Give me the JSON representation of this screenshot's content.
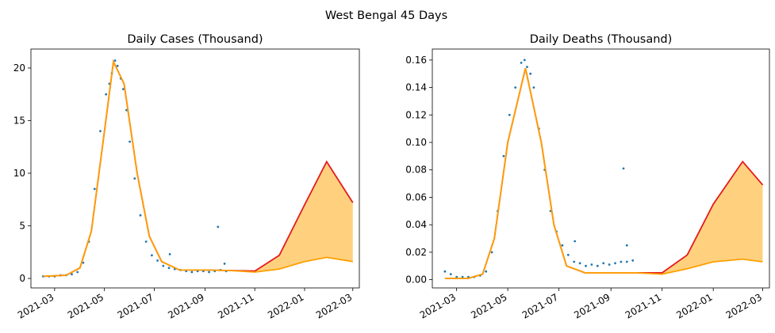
{
  "figure": {
    "suptitle": "West Bengal 45 Days"
  },
  "colors": {
    "points": "#1f77b4",
    "fit": "#ff9f00",
    "upper": "#e41a1c",
    "band": "#ffd17f"
  },
  "chart_data": [
    {
      "type": "scatter",
      "title": "Daily Cases (Thousand)",
      "xlabel": "",
      "ylabel": "",
      "x_ticks": [
        "2021-03",
        "2021-05",
        "2021-07",
        "2021-09",
        "2021-11",
        "2022-01",
        "2022-03"
      ],
      "y_ticks": [
        0,
        5,
        10,
        15,
        20
      ],
      "ylim": [
        -0.9,
        21.8
      ],
      "xlim": [
        "2022-02-17",
        "2022-03-09"
      ],
      "observed": {
        "x": [
          "2021-02-15",
          "2021-02-22",
          "2021-03-01",
          "2021-03-08",
          "2021-03-15",
          "2021-03-22",
          "2021-03-29",
          "2021-04-05",
          "2021-04-12",
          "2021-04-19",
          "2021-04-26",
          "2021-05-03",
          "2021-05-07",
          "2021-05-10",
          "2021-05-14",
          "2021-05-17",
          "2021-05-21",
          "2021-05-24",
          "2021-05-28",
          "2021-06-01",
          "2021-06-07",
          "2021-06-14",
          "2021-06-21",
          "2021-06-28",
          "2021-07-05",
          "2021-07-12",
          "2021-07-19",
          "2021-07-26",
          "2021-08-02",
          "2021-08-09",
          "2021-08-16",
          "2021-08-23",
          "2021-08-30",
          "2021-09-06",
          "2021-09-13",
          "2021-09-20",
          "2021-09-27"
        ],
        "values": [
          0.2,
          0.2,
          0.2,
          0.3,
          0.3,
          0.4,
          0.6,
          1.5,
          3.5,
          8.5,
          14.0,
          17.5,
          18.5,
          19.5,
          20.7,
          20.2,
          19.0,
          18.0,
          16.0,
          13.0,
          9.5,
          6.0,
          3.5,
          2.2,
          1.7,
          1.2,
          1.0,
          0.9,
          0.8,
          0.7,
          0.6,
          0.7,
          0.7,
          0.6,
          0.7,
          0.8,
          0.7
        ]
      },
      "outliers": {
        "x": [
          "2021-07-20",
          "2021-09-17",
          "2021-09-25"
        ],
        "values": [
          2.3,
          4.9,
          1.4
        ]
      },
      "fit_x": [
        "2021-02-15",
        "2021-03-01",
        "2021-03-15",
        "2021-04-01",
        "2021-04-15",
        "2021-05-01",
        "2021-05-12",
        "2021-05-25",
        "2021-06-10",
        "2021-06-25",
        "2021-07-10",
        "2021-08-01",
        "2021-09-01",
        "2021-10-01",
        "2021-11-01",
        "2021-12-01",
        "2022-01-01",
        "2022-01-28",
        "2022-03-01"
      ],
      "fit_lower": [
        0.2,
        0.25,
        0.3,
        1.0,
        4.5,
        14.0,
        20.6,
        18.5,
        10.0,
        4.0,
        1.6,
        0.8,
        0.8,
        0.75,
        0.6,
        0.9,
        1.6,
        2.0,
        1.6
      ],
      "fit_upper": [
        0.2,
        0.25,
        0.3,
        1.0,
        4.5,
        14.0,
        20.6,
        18.5,
        10.0,
        4.0,
        1.6,
        0.8,
        0.8,
        0.75,
        0.7,
        2.2,
        7.0,
        11.1,
        7.2
      ]
    },
    {
      "type": "scatter",
      "title": "Daily Deaths (Thousand)",
      "xlabel": "",
      "ylabel": "",
      "x_ticks": [
        "2021-03",
        "2021-05",
        "2021-07",
        "2021-09",
        "2021-11",
        "2022-01",
        "2022-03"
      ],
      "y_ticks": [
        0.0,
        0.02,
        0.04,
        0.06,
        0.08,
        0.1,
        0.12,
        0.14,
        0.16
      ],
      "ylim": [
        -0.006,
        0.168
      ],
      "xlim": [
        "2022-02-17",
        "2022-03-09"
      ],
      "observed": {
        "x": [
          "2021-02-15",
          "2021-02-22",
          "2021-03-01",
          "2021-03-08",
          "2021-03-15",
          "2021-03-22",
          "2021-03-29",
          "2021-04-05",
          "2021-04-12",
          "2021-04-19",
          "2021-04-26",
          "2021-05-03",
          "2021-05-10",
          "2021-05-17",
          "2021-05-21",
          "2021-05-24",
          "2021-05-28",
          "2021-06-01",
          "2021-06-07",
          "2021-06-14",
          "2021-06-21",
          "2021-06-28",
          "2021-07-05",
          "2021-07-12",
          "2021-07-19",
          "2021-07-26",
          "2021-08-02",
          "2021-08-09",
          "2021-08-16",
          "2021-08-23",
          "2021-08-30",
          "2021-09-06",
          "2021-09-13",
          "2021-09-20",
          "2021-09-27"
        ],
        "values": [
          0.006,
          0.004,
          0.002,
          0.002,
          0.002,
          0.002,
          0.003,
          0.006,
          0.02,
          0.05,
          0.09,
          0.12,
          0.14,
          0.158,
          0.16,
          0.155,
          0.15,
          0.14,
          0.11,
          0.08,
          0.05,
          0.035,
          0.025,
          0.018,
          0.013,
          0.012,
          0.01,
          0.011,
          0.01,
          0.012,
          0.011,
          0.012,
          0.013,
          0.013,
          0.014
        ]
      },
      "outliers": {
        "x": [
          "2021-07-20",
          "2021-09-16",
          "2021-09-20"
        ],
        "values": [
          0.028,
          0.081,
          0.025
        ]
      },
      "fit_x": [
        "2021-02-15",
        "2021-03-01",
        "2021-03-15",
        "2021-04-01",
        "2021-04-15",
        "2021-05-01",
        "2021-05-22",
        "2021-06-10",
        "2021-06-25",
        "2021-07-10",
        "2021-08-01",
        "2021-09-01",
        "2021-10-01",
        "2021-11-01",
        "2021-12-01",
        "2022-01-01",
        "2022-02-05",
        "2022-03-01"
      ],
      "fit_lower": [
        0.001,
        0.001,
        0.001,
        0.004,
        0.03,
        0.1,
        0.154,
        0.1,
        0.04,
        0.01,
        0.005,
        0.005,
        0.005,
        0.004,
        0.008,
        0.013,
        0.015,
        0.013
      ],
      "fit_upper": [
        0.001,
        0.001,
        0.001,
        0.004,
        0.03,
        0.1,
        0.154,
        0.1,
        0.04,
        0.01,
        0.005,
        0.005,
        0.005,
        0.005,
        0.018,
        0.055,
        0.086,
        0.069
      ]
    }
  ]
}
